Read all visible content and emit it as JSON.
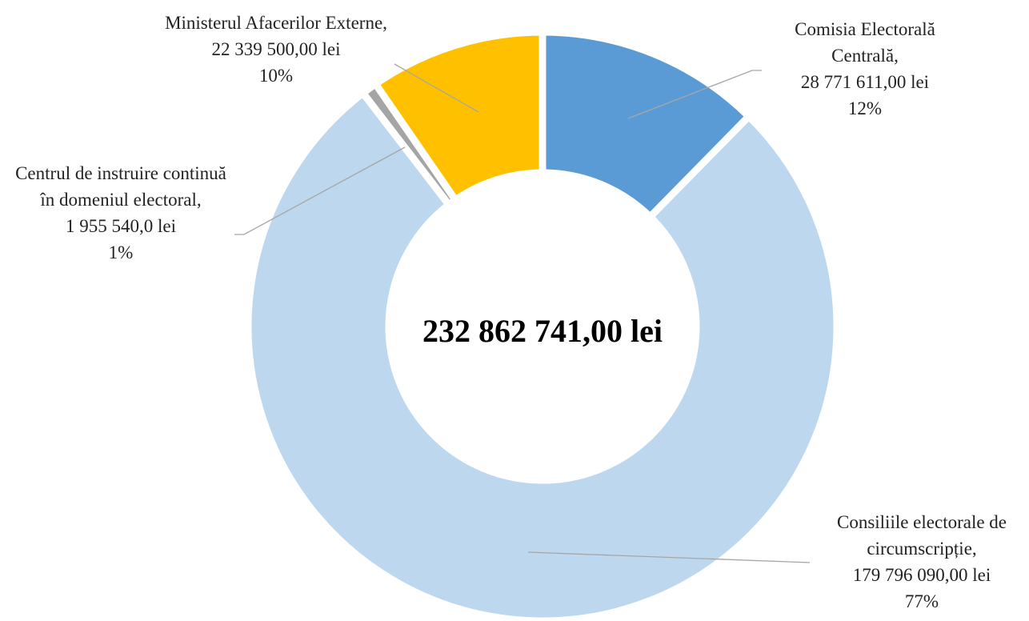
{
  "chart_data": {
    "type": "donut",
    "center_label": "232 862 741,00 lei",
    "categories": [
      "Comisia Electorală Centrală,",
      "Consiliile electorale de circumscripție,",
      "Centrul de instruire continuă în domeniul electoral,",
      "Ministerul Afacerilor Externe,"
    ],
    "values": [
      28771611.0,
      179796090.0,
      1955540.0,
      22339500.0
    ],
    "value_labels": [
      "28 771 611,00 lei",
      "179 796 090,00 lei",
      "1 955 540,0 lei",
      "22 339 500,00 lei"
    ],
    "percent_labels": [
      "12%",
      "77%",
      "1%",
      "10%"
    ],
    "colors": [
      "#5b9bd5",
      "#bdd7ee",
      "#a5a5a5",
      "#ffc000"
    ]
  }
}
